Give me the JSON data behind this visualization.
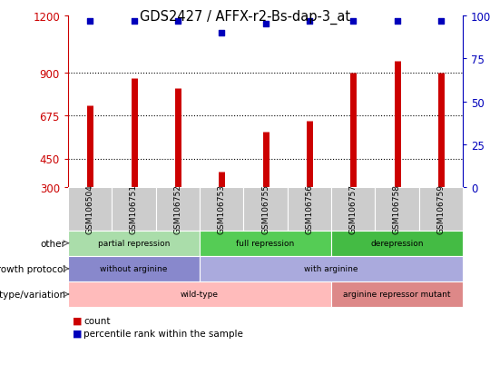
{
  "title": "GDS2427 / AFFX-r2-Bs-dap-3_at",
  "samples": [
    "GSM106504",
    "GSM106751",
    "GSM106752",
    "GSM106753",
    "GSM106755",
    "GSM106756",
    "GSM106757",
    "GSM106758",
    "GSM106759"
  ],
  "counts": [
    730,
    870,
    820,
    380,
    590,
    650,
    900,
    960,
    900
  ],
  "percentile_ranks": [
    97,
    97,
    97,
    90,
    95,
    97,
    97,
    97,
    97
  ],
  "ylim_left": [
    300,
    1200
  ],
  "yticks_left": [
    300,
    450,
    675,
    900,
    1200
  ],
  "yticks_right": [
    0,
    25,
    50,
    75,
    100
  ],
  "bar_color": "#cc0000",
  "dot_color": "#0000bb",
  "left_tick_color": "#cc0000",
  "right_tick_color": "#0000bb",
  "groups_other": [
    {
      "label": "partial repression",
      "start": 0,
      "end": 3,
      "color": "#aaddaa"
    },
    {
      "label": "full repression",
      "start": 3,
      "end": 6,
      "color": "#55cc55"
    },
    {
      "label": "derepression",
      "start": 6,
      "end": 9,
      "color": "#44bb44"
    }
  ],
  "groups_growth": [
    {
      "label": "without arginine",
      "start": 0,
      "end": 3,
      "color": "#8888cc"
    },
    {
      "label": "with arginine",
      "start": 3,
      "end": 9,
      "color": "#aaaadd"
    }
  ],
  "groups_geno": [
    {
      "label": "wild-type",
      "start": 0,
      "end": 6,
      "color": "#ffbbbb"
    },
    {
      "label": "arginine repressor mutant",
      "start": 6,
      "end": 9,
      "color": "#dd8888"
    }
  ],
  "row_labels": [
    "other",
    "growth protocol",
    "genotype/variation"
  ],
  "sample_box_color": "#cccccc",
  "grid_color": "black",
  "legend_red_label": "count",
  "legend_blue_label": "percentile rank within the sample"
}
